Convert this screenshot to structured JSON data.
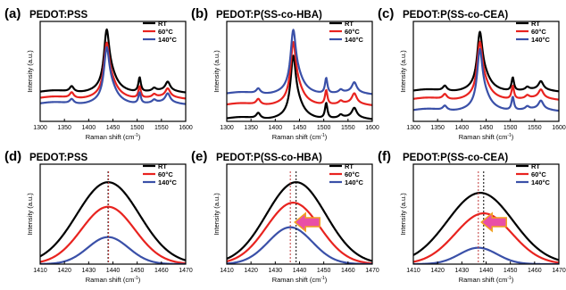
{
  "chart_data": [
    {
      "panel": "(a)",
      "title": "PEDOT:PSS",
      "type": "line",
      "xlabel": "Raman shift (cm-1)",
      "ylabel": "Intensity (a.u.)",
      "xlim": [
        1300,
        1600
      ],
      "xticks": [
        "1300",
        "1350",
        "1400",
        "1450",
        "1500",
        "1550",
        "1600"
      ],
      "legend": "top-right",
      "series": [
        {
          "name": "RT",
          "color": "#000000",
          "offset": 0.53,
          "peaks": [
            [
              1365,
              0.1,
              10
            ],
            [
              1437,
              0.92,
              13
            ],
            [
              1446,
              0.25,
              30
            ],
            [
              1505,
              0.26,
              6
            ],
            [
              1535,
              0.05,
              9
            ],
            [
              1563,
              0.16,
              12
            ]
          ]
        },
        {
          "name": "60°C",
          "color": "#e8231f",
          "offset": 0.42,
          "peaks": [
            [
              1365,
              0.1,
              10
            ],
            [
              1437,
              0.8,
              13
            ],
            [
              1446,
              0.24,
              30
            ],
            [
              1505,
              0.21,
              6
            ],
            [
              1535,
              0.05,
              9
            ],
            [
              1563,
              0.15,
              12
            ]
          ]
        },
        {
          "name": "140°C",
          "color": "#3a50a8",
          "offset": 0.32,
          "peaks": [
            [
              1365,
              0.08,
              10
            ],
            [
              1437,
              0.82,
              13
            ],
            [
              1446,
              0.24,
              30
            ],
            [
              1505,
              0.2,
              6
            ],
            [
              1535,
              0.05,
              9
            ],
            [
              1563,
              0.16,
              12
            ]
          ]
        }
      ],
      "ylim": [
        0,
        1.8
      ],
      "xshow": 300
    },
    {
      "panel": "(b)",
      "title": "PEDOT:P(SS-co-HBA)",
      "type": "line",
      "xlabel": "Raman shift (cm-1)",
      "ylabel": "Intensity (a.u.)",
      "xlim": [
        1300,
        1600
      ],
      "xticks": [
        "1300",
        "1350",
        "1400",
        "1450",
        "1500",
        "1550",
        "1600"
      ],
      "legend": "top-right",
      "series": [
        {
          "name": "RT",
          "color": "#000000",
          "offset": 0.05,
          "peaks": [
            [
              1365,
              0.1,
              10
            ],
            [
              1437,
              0.95,
              13
            ],
            [
              1446,
              0.22,
              30
            ],
            [
              1505,
              0.28,
              6
            ],
            [
              1535,
              0.05,
              9
            ],
            [
              1563,
              0.17,
              12
            ]
          ]
        },
        {
          "name": "60°C",
          "color": "#e8231f",
          "offset": 0.3,
          "peaks": [
            [
              1365,
              0.1,
              10
            ],
            [
              1437,
              0.93,
              13
            ],
            [
              1446,
              0.24,
              30
            ],
            [
              1505,
              0.26,
              6
            ],
            [
              1535,
              0.05,
              9
            ],
            [
              1563,
              0.18,
              12
            ]
          ]
        },
        {
          "name": "140°C",
          "color": "#3a50a8",
          "offset": 0.5,
          "peaks": [
            [
              1365,
              0.09,
              10
            ],
            [
              1437,
              0.95,
              13
            ],
            [
              1446,
              0.24,
              30
            ],
            [
              1505,
              0.28,
              6
            ],
            [
              1535,
              0.05,
              9
            ],
            [
              1563,
              0.18,
              12
            ]
          ]
        }
      ],
      "ylim": [
        0,
        1.8
      ],
      "xshow": 300
    },
    {
      "panel": "(c)",
      "title": "PEDOT:P(SS-co-CEA)",
      "type": "line",
      "xlabel": "Raman shift (cm-1)",
      "ylabel": "Intensity (a.u.)",
      "xlim": [
        1300,
        1600
      ],
      "xticks": [
        "1300",
        "1350",
        "1400",
        "1450",
        "1500",
        "1550",
        "1600"
      ],
      "legend": "top-right",
      "series": [
        {
          "name": "RT",
          "color": "#000000",
          "offset": 0.55,
          "peaks": [
            [
              1365,
              0.09,
              10
            ],
            [
              1437,
              0.88,
              13
            ],
            [
              1446,
              0.22,
              30
            ],
            [
              1505,
              0.24,
              6
            ],
            [
              1535,
              0.05,
              9
            ],
            [
              1563,
              0.15,
              12
            ]
          ]
        },
        {
          "name": "60°C",
          "color": "#e8231f",
          "offset": 0.4,
          "peaks": [
            [
              1365,
              0.09,
              10
            ],
            [
              1437,
              0.85,
              13
            ],
            [
              1446,
              0.22,
              30
            ],
            [
              1505,
              0.24,
              6
            ],
            [
              1535,
              0.05,
              9
            ],
            [
              1563,
              0.15,
              12
            ]
          ]
        },
        {
          "name": "140°C",
          "color": "#3a50a8",
          "offset": 0.2,
          "peaks": [
            [
              1365,
              0.08,
              10
            ],
            [
              1437,
              0.92,
              13
            ],
            [
              1446,
              0.22,
              30
            ],
            [
              1505,
              0.24,
              6
            ],
            [
              1535,
              0.05,
              9
            ],
            [
              1563,
              0.15,
              12
            ]
          ]
        }
      ],
      "ylim": [
        0,
        1.8
      ],
      "xshow": 300
    },
    {
      "panel": "(d)",
      "title": "PEDOT:PSS",
      "type": "line",
      "xlabel": "Raman shift (cm-1)",
      "ylabel": "Intensity (a.u.)",
      "xlim": [
        1410,
        1470
      ],
      "xticks": [
        "1410",
        "1420",
        "1430",
        "1440",
        "1450",
        "1460",
        "1470"
      ],
      "legend": "top-right",
      "peak_markers": [
        1438,
        1438.2
      ],
      "series": [
        {
          "name": "RT",
          "color": "#000000",
          "center": 1438,
          "height": 1.0,
          "width": 20
        },
        {
          "name": "60°C",
          "color": "#e8231f",
          "center": 1438,
          "height": 0.7,
          "width": 17
        },
        {
          "name": "140°C",
          "color": "#3a50a8",
          "center": 1438,
          "height": 0.33,
          "width": 13
        }
      ],
      "ylim": [
        0,
        1.22
      ]
    },
    {
      "panel": "(e)",
      "title": "PEDOT:P(SS-co-HBA)",
      "type": "line",
      "xlabel": "Raman shift (cm-1)",
      "ylabel": "Intensity (a.u.)",
      "xlim": [
        1410,
        1470
      ],
      "xticks": [
        "1410",
        "1420",
        "1430",
        "1440",
        "1450",
        "1460",
        "1470"
      ],
      "legend": "top-right",
      "peak_markers": [
        1438.6,
        1436.2
      ],
      "arrow": {
        "x": 1441,
        "direction": "left"
      },
      "series": [
        {
          "name": "RT",
          "color": "#000000",
          "center": 1438.6,
          "height": 1.0,
          "width": 19
        },
        {
          "name": "60°C",
          "color": "#e8231f",
          "center": 1437.4,
          "height": 0.75,
          "width": 17
        },
        {
          "name": "140°C",
          "color": "#3a50a8",
          "center": 1436.2,
          "height": 0.45,
          "width": 14
        }
      ],
      "ylim": [
        0,
        1.22
      ]
    },
    {
      "panel": "(f)",
      "title": "PEDOT:P(SS-co-CEA)",
      "type": "line",
      "xlabel": "Raman shift (cm-1)",
      "ylabel": "Intensity (a.u.)",
      "xlim": [
        1410,
        1470
      ],
      "xticks": [
        "1410",
        "1420",
        "1430",
        "1440",
        "1450",
        "1460",
        "1470"
      ],
      "legend": "top-right",
      "peak_markers": [
        1439,
        1436.8
      ],
      "arrow": {
        "x": 1441,
        "direction": "left"
      },
      "series": [
        {
          "name": "RT",
          "color": "#000000",
          "center": 1437.6,
          "height": 0.87,
          "width": 21
        },
        {
          "name": "60°C",
          "color": "#e8231f",
          "center": 1439,
          "height": 0.62,
          "width": 18
        },
        {
          "name": "140°C",
          "color": "#3a50a8",
          "center": 1436.8,
          "height": 0.2,
          "width": 12
        }
      ],
      "ylim": [
        0,
        1.22
      ]
    }
  ]
}
